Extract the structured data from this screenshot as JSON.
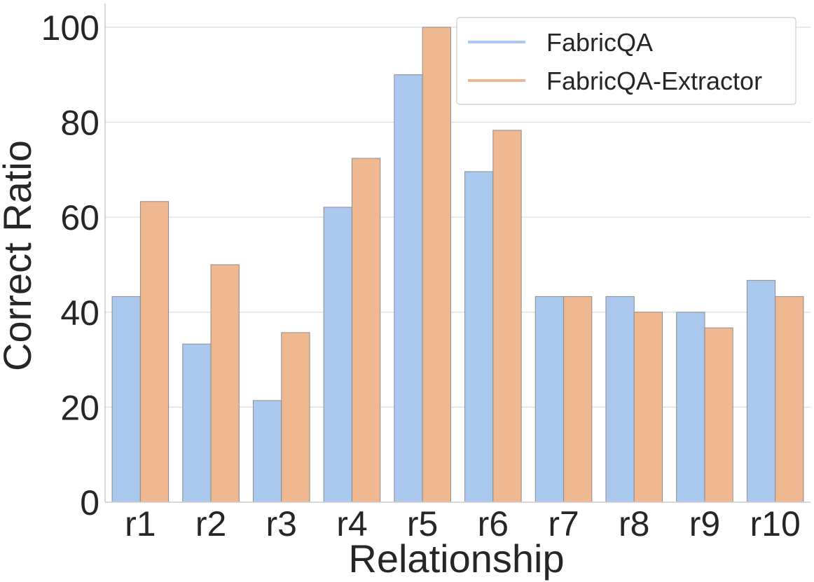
{
  "chart_data": {
    "type": "bar",
    "title": "",
    "xlabel": "Relationship",
    "ylabel": "Correct Ratio",
    "categories": [
      "r1",
      "r2",
      "r3",
      "r4",
      "r5",
      "r6",
      "r7",
      "r8",
      "r9",
      "r10"
    ],
    "series": [
      {
        "name": "FabricQA",
        "color": "#abc9ee",
        "values": [
          43.3,
          33.3,
          21.4,
          62.1,
          90.0,
          69.6,
          43.3,
          43.3,
          40.0,
          46.7
        ]
      },
      {
        "name": "FabricQA-Extractor",
        "color": "#f0b891",
        "values": [
          63.3,
          50.0,
          35.7,
          72.4,
          100.0,
          78.3,
          43.3,
          40.0,
          36.7,
          43.3
        ]
      }
    ],
    "ylim": [
      0,
      105
    ],
    "yticks": [
      0,
      20,
      40,
      60,
      80,
      100
    ],
    "grid": true,
    "legend_position": "top-right"
  }
}
